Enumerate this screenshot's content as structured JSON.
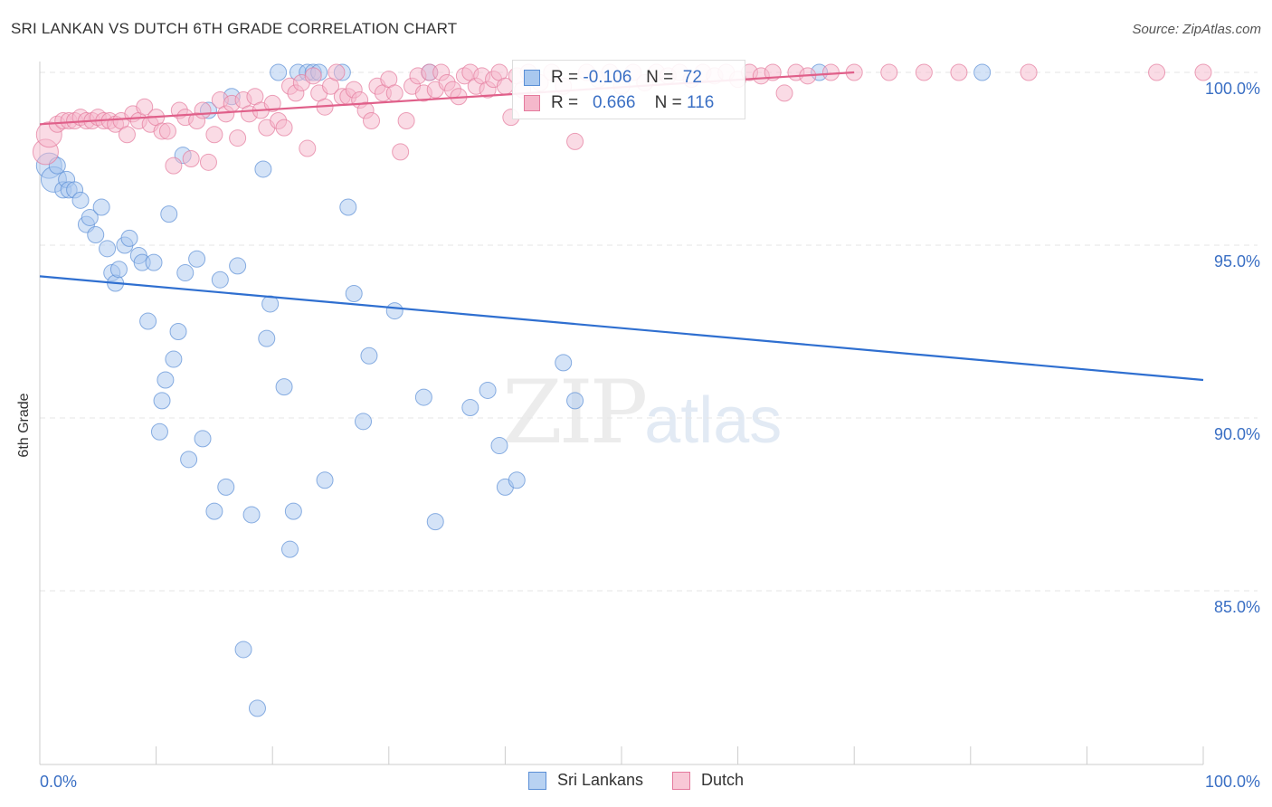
{
  "header": {
    "title": "SRI LANKAN VS DUTCH 6TH GRADE CORRELATION CHART",
    "source": "Source: ZipAtlas.com"
  },
  "watermark": {
    "zip": "ZIP",
    "atlas": "atlas"
  },
  "legend_top": {
    "rows": [
      {
        "r_label": "R =",
        "r_value": "-0.106",
        "n_label": "N =",
        "n_value": "72",
        "color": "#a9c8ef",
        "border": "#5b8fd6"
      },
      {
        "r_label": "R =",
        "r_value": "0.666",
        "n_label": "N =",
        "n_value": "116",
        "color": "#f5b8cb",
        "border": "#e47a9d"
      }
    ]
  },
  "legend_bottom": [
    {
      "label": "Sri Lankans",
      "color": "#b8d2f2",
      "border": "#5b8fd6"
    },
    {
      "label": "Dutch",
      "color": "#f8c8d6",
      "border": "#e47a9d"
    }
  ],
  "chart_data": {
    "type": "scatter",
    "title": "SRI LANKAN VS DUTCH 6TH GRADE CORRELATION CHART",
    "xlabel": "",
    "ylabel": "6th Grade",
    "xlim": [
      0,
      100
    ],
    "ylim": [
      80.5,
      100.5
    ],
    "x_tick_labels": [
      "0.0%",
      "100.0%"
    ],
    "y_ticks": [
      85,
      90,
      95,
      100
    ],
    "y_tick_labels": [
      "85.0%",
      "90.0%",
      "95.0%",
      "100.0%"
    ],
    "grid": true,
    "series": [
      {
        "name": "Sri Lankans",
        "color": "#a9c8ef",
        "stroke": "#5b8fd6",
        "trend": {
          "x": [
            0,
            100
          ],
          "y": [
            94.1,
            91.1
          ],
          "color": "#2f6fd0"
        },
        "points": [
          [
            0.8,
            97.3
          ],
          [
            1.2,
            96.9
          ],
          [
            1.5,
            97.3
          ],
          [
            2.0,
            96.6
          ],
          [
            2.3,
            96.9
          ],
          [
            2.5,
            96.6
          ],
          [
            3.0,
            96.6
          ],
          [
            3.5,
            96.3
          ],
          [
            4.0,
            95.6
          ],
          [
            4.3,
            95.8
          ],
          [
            4.8,
            95.3
          ],
          [
            5.3,
            96.1
          ],
          [
            5.8,
            94.9
          ],
          [
            6.2,
            94.2
          ],
          [
            6.5,
            93.9
          ],
          [
            6.8,
            94.3
          ],
          [
            7.3,
            95.0
          ],
          [
            7.7,
            95.2
          ],
          [
            8.5,
            94.7
          ],
          [
            8.8,
            94.5
          ],
          [
            9.3,
            92.8
          ],
          [
            9.8,
            94.5
          ],
          [
            10.3,
            89.6
          ],
          [
            10.5,
            90.5
          ],
          [
            10.8,
            91.1
          ],
          [
            11.1,
            95.9
          ],
          [
            11.5,
            91.7
          ],
          [
            11.9,
            92.5
          ],
          [
            12.3,
            97.6
          ],
          [
            12.5,
            94.2
          ],
          [
            12.8,
            88.8
          ],
          [
            13.5,
            94.6
          ],
          [
            14.0,
            89.4
          ],
          [
            14.5,
            98.9
          ],
          [
            15.0,
            87.3
          ],
          [
            15.5,
            94.0
          ],
          [
            16.0,
            88.0
          ],
          [
            16.5,
            99.3
          ],
          [
            17.0,
            94.4
          ],
          [
            17.5,
            83.3
          ],
          [
            18.2,
            87.2
          ],
          [
            18.7,
            81.6
          ],
          [
            19.2,
            97.2
          ],
          [
            19.5,
            92.3
          ],
          [
            19.8,
            93.3
          ],
          [
            20.5,
            100.0
          ],
          [
            21.0,
            90.9
          ],
          [
            21.5,
            86.2
          ],
          [
            21.8,
            87.3
          ],
          [
            22.2,
            100.0
          ],
          [
            23.0,
            100.0
          ],
          [
            23.5,
            100.0
          ],
          [
            24.0,
            100.0
          ],
          [
            24.5,
            88.2
          ],
          [
            26.0,
            100.0
          ],
          [
            26.5,
            96.1
          ],
          [
            27.0,
            93.6
          ],
          [
            27.8,
            89.9
          ],
          [
            28.3,
            91.8
          ],
          [
            30.5,
            93.1
          ],
          [
            33.0,
            90.6
          ],
          [
            33.5,
            100.0
          ],
          [
            34.0,
            87.0
          ],
          [
            37.0,
            90.3
          ],
          [
            38.5,
            90.8
          ],
          [
            39.5,
            89.2
          ],
          [
            40.0,
            88.0
          ],
          [
            41.0,
            88.2
          ],
          [
            45.0,
            91.6
          ],
          [
            46.0,
            90.5
          ],
          [
            67.0,
            100.0
          ],
          [
            81.0,
            100.0
          ]
        ]
      },
      {
        "name": "Dutch",
        "color": "#f5b8cb",
        "stroke": "#e47a9d",
        "trend": {
          "x": [
            0,
            70
          ],
          "y": [
            98.5,
            100.0
          ],
          "color": "#e0608a"
        },
        "points": [
          [
            0.5,
            97.7
          ],
          [
            0.8,
            98.2
          ],
          [
            1.5,
            98.5
          ],
          [
            2.0,
            98.6
          ],
          [
            2.5,
            98.6
          ],
          [
            3.0,
            98.6
          ],
          [
            3.5,
            98.7
          ],
          [
            4.0,
            98.6
          ],
          [
            4.5,
            98.6
          ],
          [
            5.0,
            98.7
          ],
          [
            5.5,
            98.6
          ],
          [
            6.0,
            98.6
          ],
          [
            6.5,
            98.5
          ],
          [
            7.0,
            98.6
          ],
          [
            7.5,
            98.2
          ],
          [
            8.0,
            98.8
          ],
          [
            8.5,
            98.6
          ],
          [
            9.0,
            99.0
          ],
          [
            9.5,
            98.5
          ],
          [
            10.0,
            98.7
          ],
          [
            10.5,
            98.3
          ],
          [
            11.0,
            98.3
          ],
          [
            11.5,
            97.3
          ],
          [
            12.0,
            98.9
          ],
          [
            12.5,
            98.7
          ],
          [
            13.0,
            97.5
          ],
          [
            13.5,
            98.6
          ],
          [
            14.0,
            98.9
          ],
          [
            14.5,
            97.4
          ],
          [
            15.0,
            98.2
          ],
          [
            15.5,
            99.2
          ],
          [
            16.0,
            98.8
          ],
          [
            16.5,
            99.1
          ],
          [
            17.0,
            98.1
          ],
          [
            17.5,
            99.2
          ],
          [
            18.0,
            98.8
          ],
          [
            18.5,
            99.3
          ],
          [
            19.0,
            98.9
          ],
          [
            19.5,
            98.4
          ],
          [
            20.0,
            99.1
          ],
          [
            20.5,
            98.6
          ],
          [
            21.0,
            98.4
          ],
          [
            21.5,
            99.6
          ],
          [
            22.0,
            99.4
          ],
          [
            22.5,
            99.7
          ],
          [
            23.0,
            97.8
          ],
          [
            23.5,
            99.9
          ],
          [
            24.0,
            99.4
          ],
          [
            24.5,
            99.0
          ],
          [
            25.0,
            99.6
          ],
          [
            25.5,
            100.0
          ],
          [
            26.0,
            99.3
          ],
          [
            26.5,
            99.3
          ],
          [
            27.0,
            99.5
          ],
          [
            27.5,
            99.2
          ],
          [
            28.0,
            98.9
          ],
          [
            28.5,
            98.6
          ],
          [
            29.0,
            99.6
          ],
          [
            29.5,
            99.4
          ],
          [
            30.0,
            99.8
          ],
          [
            30.5,
            99.4
          ],
          [
            31.0,
            97.7
          ],
          [
            31.5,
            98.6
          ],
          [
            32.0,
            99.6
          ],
          [
            32.5,
            99.9
          ],
          [
            33.0,
            99.4
          ],
          [
            33.5,
            100.0
          ],
          [
            34.0,
            99.5
          ],
          [
            34.5,
            100.0
          ],
          [
            35.0,
            99.7
          ],
          [
            35.5,
            99.5
          ],
          [
            36.0,
            99.3
          ],
          [
            36.5,
            99.9
          ],
          [
            37.0,
            100.0
          ],
          [
            37.5,
            99.6
          ],
          [
            38.0,
            99.9
          ],
          [
            38.5,
            99.5
          ],
          [
            39.0,
            99.8
          ],
          [
            39.5,
            100.0
          ],
          [
            40.0,
            99.6
          ],
          [
            40.5,
            98.7
          ],
          [
            41.0,
            99.9
          ],
          [
            41.5,
            99.5
          ],
          [
            42.0,
            100.0
          ],
          [
            43.0,
            99.7
          ],
          [
            44.0,
            100.0
          ],
          [
            45.0,
            99.6
          ],
          [
            46.0,
            98.0
          ],
          [
            47.0,
            100.0
          ],
          [
            48.0,
            99.8
          ],
          [
            49.0,
            100.0
          ],
          [
            50.0,
            99.6
          ],
          [
            51.0,
            100.0
          ],
          [
            52.0,
            99.7
          ],
          [
            53.0,
            100.0
          ],
          [
            54.0,
            99.9
          ],
          [
            55.0,
            100.0
          ],
          [
            56.0,
            99.8
          ],
          [
            57.0,
            100.0
          ],
          [
            58.0,
            99.9
          ],
          [
            59.0,
            100.0
          ],
          [
            60.0,
            99.8
          ],
          [
            61.0,
            100.0
          ],
          [
            62.0,
            99.9
          ],
          [
            63.0,
            100.0
          ],
          [
            64.0,
            99.4
          ],
          [
            65.0,
            100.0
          ],
          [
            66.0,
            99.9
          ],
          [
            68.0,
            100.0
          ],
          [
            70.0,
            100.0
          ],
          [
            73.0,
            100.0
          ],
          [
            76.0,
            100.0
          ],
          [
            79.0,
            100.0
          ],
          [
            85.0,
            100.0
          ],
          [
            96.0,
            100.0
          ],
          [
            100.0,
            100.0
          ]
        ]
      }
    ]
  }
}
